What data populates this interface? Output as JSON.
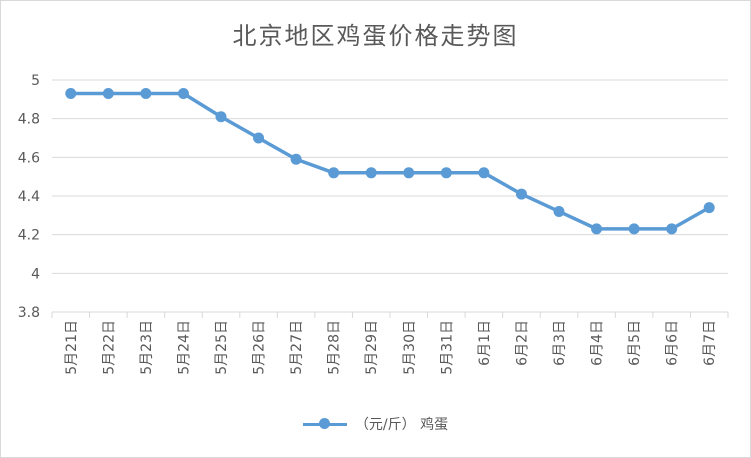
{
  "chart_data": {
    "type": "line",
    "title": "北京地区鸡蛋价格走势图",
    "categories": [
      "5月21日",
      "5月22日",
      "5月23日",
      "5月24日",
      "5月25日",
      "5月26日",
      "5月27日",
      "5月28日",
      "5月29日",
      "5月30日",
      "5月31日",
      "6月1日",
      "6月2日",
      "6月3日",
      "6月4日",
      "6月5日",
      "6月6日",
      "6月7日"
    ],
    "series": [
      {
        "name": "（元/斤） 鸡蛋",
        "values": [
          4.93,
          4.93,
          4.93,
          4.93,
          4.81,
          4.7,
          4.59,
          4.52,
          4.52,
          4.52,
          4.52,
          4.52,
          4.41,
          4.32,
          4.23,
          4.23,
          4.23,
          4.34
        ]
      }
    ],
    "ylim": [
      3.8,
      5
    ],
    "yticks": [
      "3.8",
      "4",
      "4.2",
      "4.4",
      "4.6",
      "4.8",
      "5"
    ],
    "grid": true,
    "legend_position": "bottom",
    "line_color": "#5b9bd5"
  }
}
